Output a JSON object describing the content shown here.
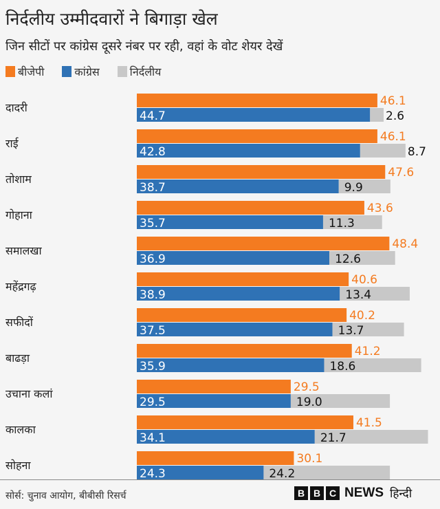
{
  "title": "निर्दलीय उम्मीदवारों ने बिगाड़ा खेल",
  "subtitle": "जिन सीटों पर कांग्रेस दूसरे नंबर पर रही, वहां के वोट शेयर देखें",
  "source": "सोर्स: चुनाव आयोग, बीबीसी रिसर्च",
  "logo": {
    "letters": [
      "B",
      "B",
      "C"
    ],
    "news": "NEWS",
    "hindi": "हिन्दी"
  },
  "chart_data": {
    "type": "bar",
    "orientation": "horizontal",
    "legend_position": "top-left",
    "grid": false,
    "categories": [
      "दादरी",
      "राई",
      "तोशाम",
      "गोहाना",
      "समालखा",
      "महेंद्रगढ़",
      "सफीदों",
      "बाढड़ा",
      "उचाना कलां",
      "कालका",
      "सोहना"
    ],
    "series": [
      {
        "name": "बीजेपी",
        "color": "#f47b20",
        "values": [
          46.1,
          46.1,
          47.6,
          43.6,
          48.4,
          40.6,
          40.2,
          41.2,
          29.5,
          41.5,
          30.1
        ]
      },
      {
        "name": "कांग्रेस",
        "color": "#2f72b5",
        "values": [
          44.7,
          42.8,
          38.7,
          35.7,
          36.9,
          38.9,
          37.5,
          35.9,
          29.5,
          34.1,
          24.3
        ]
      },
      {
        "name": "निर्दलीय",
        "color": "#c8c8c8",
        "values": [
          2.6,
          8.7,
          9.9,
          11.3,
          12.6,
          13.4,
          13.7,
          18.6,
          19.0,
          21.7,
          24.2
        ]
      }
    ]
  }
}
